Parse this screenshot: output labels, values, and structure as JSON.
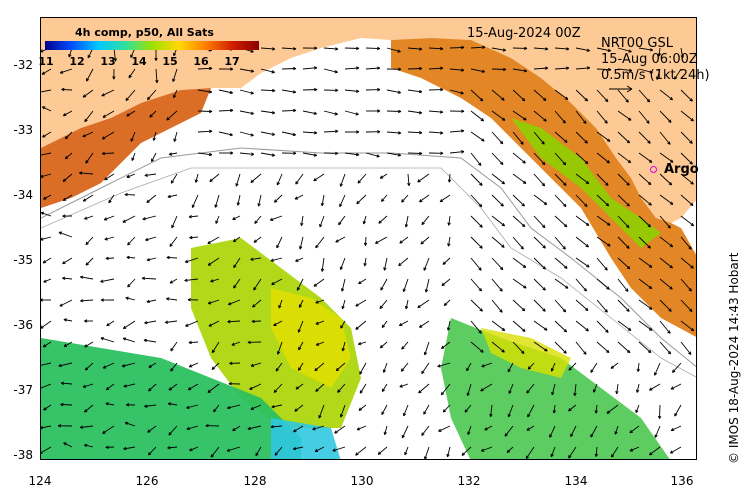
{
  "map": {
    "date_label": "15-Aug-2024 00Z",
    "info_lines": [
      "NRT00 GSL",
      "15-Aug 06:00Z",
      "0.5m/s (1kt 24h)"
    ],
    "credit": "© IMOS 18-Aug-2024 14:43 Hobart",
    "colorbar": {
      "title": "4h comp, p50, All Sats",
      "ticks": [
        "11",
        "12",
        "13",
        "14",
        "15",
        "16",
        "17"
      ],
      "colors": [
        "#00008b",
        "#0050ff",
        "#00c8ff",
        "#30e0a0",
        "#9ce000",
        "#ffd800",
        "#ff8000",
        "#d02000",
        "#8b0000"
      ]
    },
    "marker": {
      "label": "Argo",
      "color": "#e000e0"
    },
    "land_color": "#fdca95",
    "lon_ticks": [
      "124",
      "126",
      "128",
      "130",
      "132",
      "134",
      "136"
    ],
    "lat_ticks": [
      "-32",
      "-33",
      "-34",
      "-35",
      "-36",
      "-37",
      "-38"
    ]
  }
}
